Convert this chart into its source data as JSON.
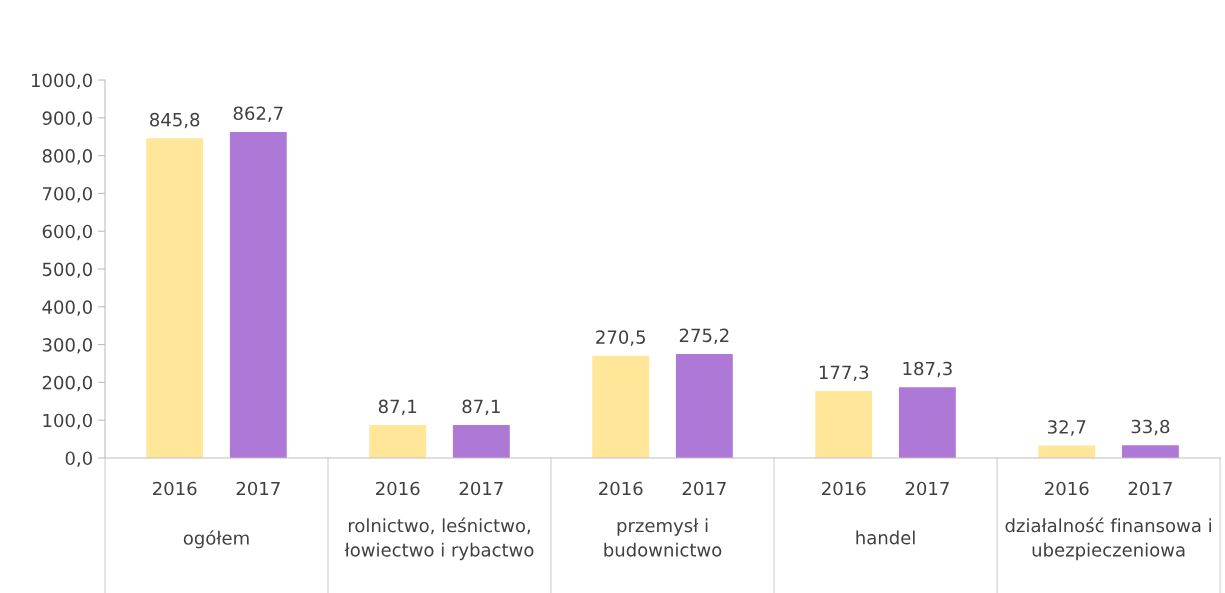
{
  "chart_data": {
    "type": "bar",
    "categories": [
      "ogółem",
      "rolnictwo, leśnictwo,\nłowiectwo i rybactwo",
      "przemysł i\nbudownictwo",
      "handel",
      "działalność finansowa i\nubezpieczeniowa"
    ],
    "series": [
      {
        "name": "2016",
        "color": "#ffe699",
        "values": [
          845.8,
          87.1,
          270.5,
          177.3,
          32.7
        ],
        "value_labels": [
          "845,8",
          "87,1",
          "270,5",
          "177,3",
          "32,7"
        ]
      },
      {
        "name": "2017",
        "color": "#ae78d6",
        "values": [
          862.7,
          87.1,
          275.2,
          187.3,
          33.8
        ],
        "value_labels": [
          "862,7",
          "87,1",
          "275,2",
          "187,3",
          "33,8"
        ]
      }
    ],
    "ylim": [
      0,
      1000
    ],
    "yticks": [
      {
        "value": 0,
        "label": "0,0"
      },
      {
        "value": 100,
        "label": "100,0"
      },
      {
        "value": 200,
        "label": "200,0"
      },
      {
        "value": 300,
        "label": "300,0"
      },
      {
        "value": 400,
        "label": "400,0"
      },
      {
        "value": 500,
        "label": "500,0"
      },
      {
        "value": 600,
        "label": "600,0"
      },
      {
        "value": 700,
        "label": "700,0"
      },
      {
        "value": 800,
        "label": "800,0"
      },
      {
        "value": 900,
        "label": "900,0"
      },
      {
        "value": 1000,
        "label": "1000,0"
      }
    ],
    "grid": false,
    "legend": false
  }
}
